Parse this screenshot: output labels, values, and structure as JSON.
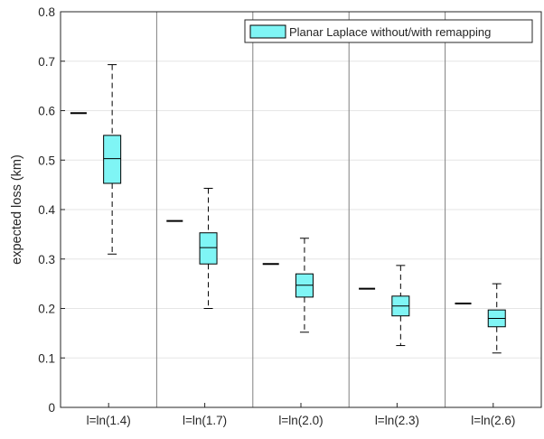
{
  "chart_data": {
    "type": "box",
    "title": "",
    "xlabel": "",
    "ylabel": "expected loss (km)",
    "ylim": [
      0,
      0.8
    ],
    "yticks": [
      0,
      0.1,
      0.2,
      0.3,
      0.4,
      0.5,
      0.6,
      0.7,
      0.8
    ],
    "ytick_labels": [
      "0",
      "0.1",
      "0.2",
      "0.3",
      "0.4",
      "0.5",
      "0.6",
      "0.7",
      "0.8"
    ],
    "grid": "horizontal",
    "legend_position": "top-right",
    "categories": [
      "l=ln(1.4)",
      "l=ln(1.7)",
      "l=ln(2.0)",
      "l=ln(2.3)",
      "l=ln(2.6)"
    ],
    "series": [
      {
        "name": "Planar Laplace without/with remapping",
        "without_remapping": [
          0.595,
          0.377,
          0.29,
          0.24,
          0.21
        ],
        "with_remapping": [
          {
            "whisker_low": 0.31,
            "q1": 0.453,
            "median": 0.503,
            "q3": 0.55,
            "whisker_high": 0.693
          },
          {
            "whisker_low": 0.2,
            "q1": 0.29,
            "median": 0.323,
            "q3": 0.353,
            "whisker_high": 0.443
          },
          {
            "whisker_low": 0.152,
            "q1": 0.223,
            "median": 0.247,
            "q3": 0.27,
            "whisker_high": 0.342
          },
          {
            "whisker_low": 0.125,
            "q1": 0.185,
            "median": 0.205,
            "q3": 0.225,
            "whisker_high": 0.287
          },
          {
            "whisker_low": 0.11,
            "q1": 0.163,
            "median": 0.18,
            "q3": 0.197,
            "whisker_high": 0.25
          }
        ]
      }
    ],
    "colors": {
      "box_fill": "#7ff5f5",
      "line": "#000000",
      "grid": "#e6e6e6",
      "separator": "#808080",
      "axis": "#262626"
    }
  }
}
